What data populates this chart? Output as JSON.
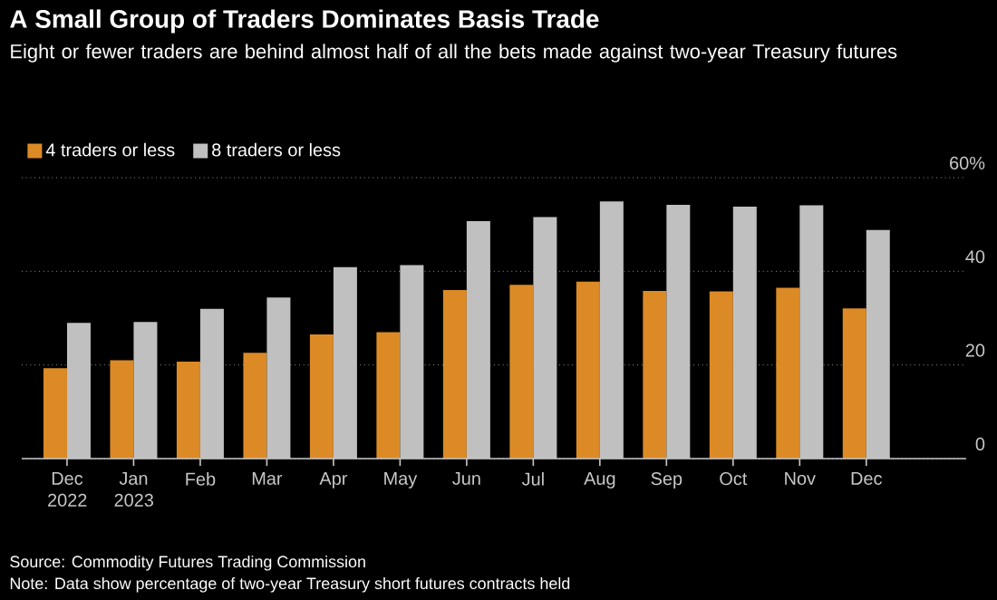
{
  "chart_data": {
    "type": "bar",
    "title": "A Small Group of Traders Dominates Basis Trade",
    "subtitle": "Eight or fewer traders are behind almost half of all the bets made against two-year Treasury futures",
    "categories": [
      "Dec 2022",
      "Jan 2023",
      "Feb",
      "Mar",
      "Apr",
      "May",
      "Jun",
      "Jul",
      "Aug",
      "Sep",
      "Oct",
      "Nov",
      "Dec"
    ],
    "series": [
      {
        "name": "4 traders or less",
        "color": "#dc8a26",
        "values": [
          19.3,
          21.0,
          20.7,
          22.6,
          26.5,
          27.0,
          36.0,
          37.1,
          37.8,
          35.8,
          35.7,
          36.5,
          32.1
        ]
      },
      {
        "name": "8 traders or less",
        "color": "#c0c0c0",
        "values": [
          29.0,
          29.2,
          32.0,
          34.4,
          40.9,
          41.3,
          50.7,
          51.6,
          54.9,
          54.2,
          53.8,
          54.1,
          48.8
        ]
      }
    ],
    "ylim": [
      0,
      60
    ],
    "yticks": [
      0,
      20,
      40,
      {
        "value": 60,
        "label": "60%"
      }
    ],
    "grid": "y",
    "legend": "top left",
    "annotations": [
      "Source: Commodity Futures Trading Commission",
      "Note: Data show percentage of two-year Treasury short futures contracts held"
    ]
  }
}
